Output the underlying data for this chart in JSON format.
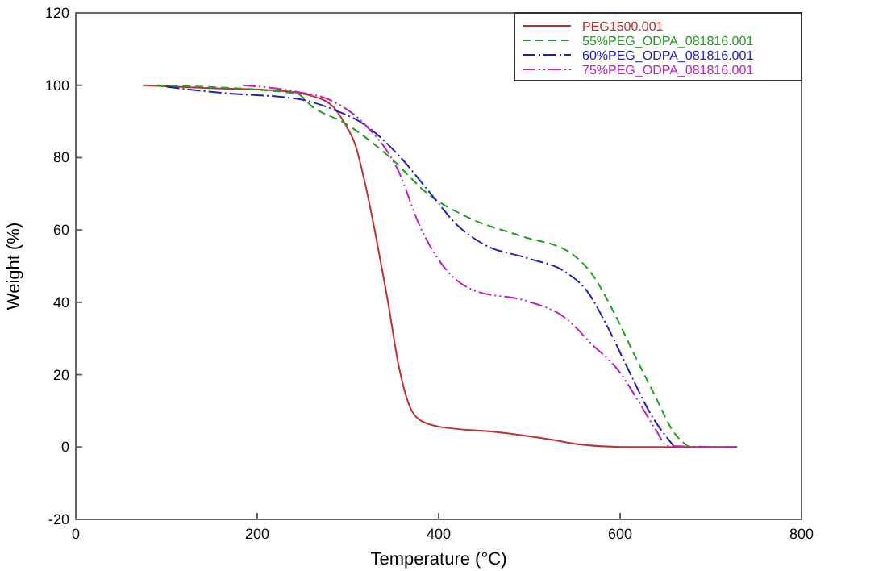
{
  "chart_data": {
    "type": "line",
    "xlabel": "Temperature (°C)",
    "ylabel": "Weight (%)",
    "xlim": [
      0,
      800
    ],
    "ylim": [
      -20,
      120
    ],
    "xticks": [
      0,
      200,
      400,
      600,
      800
    ],
    "yticks": [
      -20,
      0,
      20,
      40,
      60,
      80,
      100,
      120
    ],
    "grid": false,
    "legend": "top right",
    "marker": "none",
    "series": [
      {
        "name": "PEG1500.001",
        "color": "#c03030",
        "line_style": "solid",
        "x": [
          74,
          136,
          225,
          261,
          284,
          296,
          308,
          320,
          332,
          344,
          356,
          367,
          379,
          403,
          462,
          521,
          557,
          610,
          729
        ],
        "values": [
          100,
          99.3,
          98.5,
          97,
          94,
          89.6,
          83.6,
          71.6,
          56.7,
          40.3,
          22.4,
          11.9,
          7.5,
          5.5,
          4.2,
          2.2,
          0.7,
          0,
          0
        ]
      },
      {
        "name": "55%PEG_ODPA_081816.001",
        "color": "#20a020",
        "line_style": "dashed",
        "x": [
          89,
          243,
          261,
          296,
          344,
          391,
          433,
          492,
          545,
          569,
          593,
          616,
          640,
          658,
          676
        ],
        "values": [
          100,
          97.8,
          94,
          89.6,
          80.6,
          69.4,
          63.4,
          58.2,
          53.7,
          47.8,
          37.3,
          25.4,
          13.4,
          4.5,
          0
        ]
      },
      {
        "name": "60%PEG_ODPA_081816.001",
        "color": "#2020c0",
        "line_style": "dashdot",
        "x": [
          100,
          119,
          166,
          243,
          284,
          320,
          356,
          391,
          421,
          450,
          498,
          539,
          563,
          587,
          610,
          634,
          660
        ],
        "values": [
          99.6,
          99,
          97.8,
          96.3,
          93.3,
          88.8,
          80.6,
          70.1,
          61.2,
          56,
          52.2,
          48.5,
          43.3,
          32.8,
          20.9,
          9,
          0
        ]
      },
      {
        "name": "75%PEG_ODPA_081816.001",
        "color": "#c020c0",
        "line_style": "dashdotdot",
        "x": [
          184,
          237,
          284,
          320,
          356,
          379,
          403,
          439,
          498,
          539,
          569,
          599,
          622,
          640,
          652,
          729
        ],
        "values": [
          100,
          98.5,
          95.5,
          88.8,
          76.1,
          61.2,
          50.7,
          43.3,
          40.3,
          35.8,
          28.4,
          20.9,
          11.9,
          4.5,
          0.3,
          0
        ]
      }
    ]
  }
}
